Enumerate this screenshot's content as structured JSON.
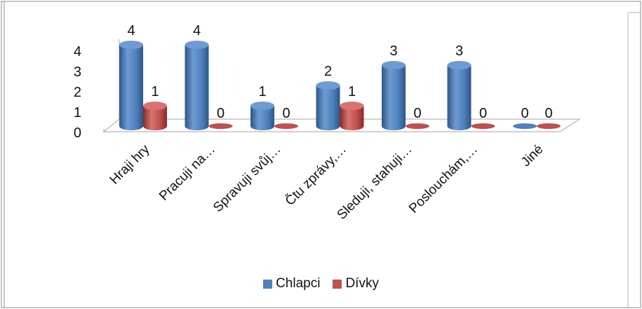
{
  "chart_data": {
    "type": "bar",
    "style": "3d-cylinder",
    "categories": [
      "Hraji hry",
      "Pracuji na…",
      "Spravuji svůj…",
      "Čtu zprávy,…",
      "Sleduji, stahuji…",
      "Poslouchám,…",
      "Jiné"
    ],
    "series": [
      {
        "name": "Chlapci",
        "color": "#4f81bd",
        "values": [
          4,
          4,
          1,
          2,
          3,
          3,
          0
        ]
      },
      {
        "name": "Dívky",
        "color": "#c0504d",
        "values": [
          1,
          0,
          0,
          1,
          0,
          0,
          0
        ]
      }
    ],
    "ylim": [
      0,
      4
    ],
    "yticks": [
      "0",
      "1",
      "2",
      "3",
      "4"
    ],
    "data_labels": true,
    "legend": "bottom",
    "grid": false
  },
  "legend": {
    "items": [
      {
        "label": "Chlapci",
        "color": "#4f81bd"
      },
      {
        "label": "Dívky",
        "color": "#c0504d"
      }
    ]
  }
}
